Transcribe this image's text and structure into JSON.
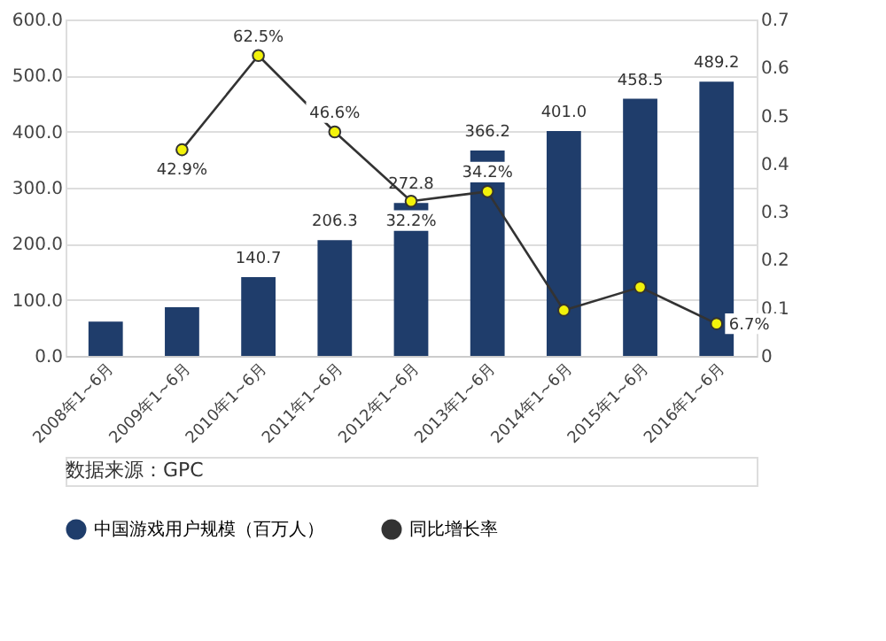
{
  "chart_data": {
    "type": "bar",
    "categories": [
      "2008年1~6月",
      "2009年1~6月",
      "2010年1~6月",
      "2011年1~6月",
      "2012年1~6月",
      "2013年1~6月",
      "2014年1~6月",
      "2015年1~6月",
      "2016年1~6月"
    ],
    "series": [
      {
        "name": "中国游戏用户规模（百万人）",
        "color": "#1f3d6b",
        "values": [
          61,
          87,
          140.7,
          206.3,
          272.8,
          366.2,
          401.0,
          458.5,
          489.2
        ],
        "value_labels": [
          null,
          null,
          "140.7",
          "206.3",
          "272.8",
          "366.2",
          "401.0",
          "458.5",
          "489.2"
        ]
      },
      {
        "name": "同比增长率",
        "type": "line",
        "axis": "y2",
        "color": "#333333",
        "marker": "circle",
        "values": [
          null,
          0.429,
          0.625,
          0.466,
          0.322,
          0.342,
          0.095,
          0.143,
          0.067
        ],
        "value_labels": [
          null,
          "42.9%",
          "62.5%",
          "46.6%",
          "32.2%",
          "34.2%",
          null,
          null,
          "6.7%"
        ]
      }
    ],
    "ylim": [
      0,
      600
    ],
    "yticks": [
      {
        "value": 0,
        "label": "0.0"
      },
      {
        "value": 100,
        "label": "100.0"
      },
      {
        "value": 200,
        "label": "200.0"
      },
      {
        "value": 300,
        "label": "300.0"
      },
      {
        "value": 400,
        "label": "400.0"
      },
      {
        "value": 500,
        "label": "500.0"
      },
      {
        "value": 600,
        "label": "600.0"
      }
    ],
    "y2lim": [
      0,
      0.7
    ],
    "y2ticks": [
      0,
      0.1,
      0.2,
      0.3,
      0.4,
      0.5,
      0.6,
      0.7
    ],
    "grid": "y",
    "legend": "bottom",
    "annotations": [
      "数据来源：GPC"
    ]
  }
}
